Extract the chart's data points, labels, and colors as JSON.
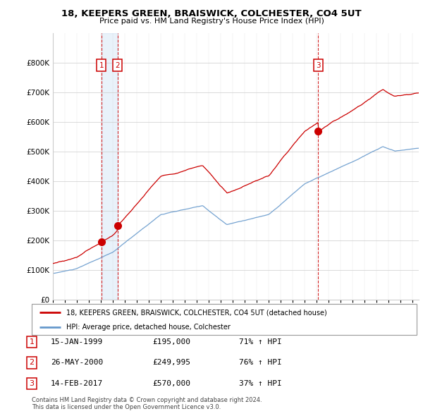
{
  "title": "18, KEEPERS GREEN, BRAISWICK, COLCHESTER, CO4 5UT",
  "subtitle": "Price paid vs. HM Land Registry's House Price Index (HPI)",
  "red_label": "18, KEEPERS GREEN, BRAISWICK, COLCHESTER, CO4 5UT (detached house)",
  "blue_label": "HPI: Average price, detached house, Colchester",
  "sales": [
    {
      "num": 1,
      "date": "15-JAN-1999",
      "price": 195000,
      "year": 1999.04,
      "hpi_pct": "71%",
      "arrow": "↑"
    },
    {
      "num": 2,
      "date": "26-MAY-2000",
      "price": 249995,
      "year": 2000.4,
      "hpi_pct": "76%",
      "arrow": "↑"
    },
    {
      "num": 3,
      "date": "14-FEB-2017",
      "price": 570000,
      "year": 2017.12,
      "hpi_pct": "37%",
      "arrow": "↑"
    }
  ],
  "vline_color": "#cc0000",
  "marker_color": "#cc0000",
  "copyright": "Contains HM Land Registry data © Crown copyright and database right 2024.\nThis data is licensed under the Open Government Licence v3.0.",
  "ylim": [
    0,
    900000
  ],
  "xlim_start": 1995.0,
  "xlim_end": 2025.5,
  "shade_color": "#ddeeff"
}
